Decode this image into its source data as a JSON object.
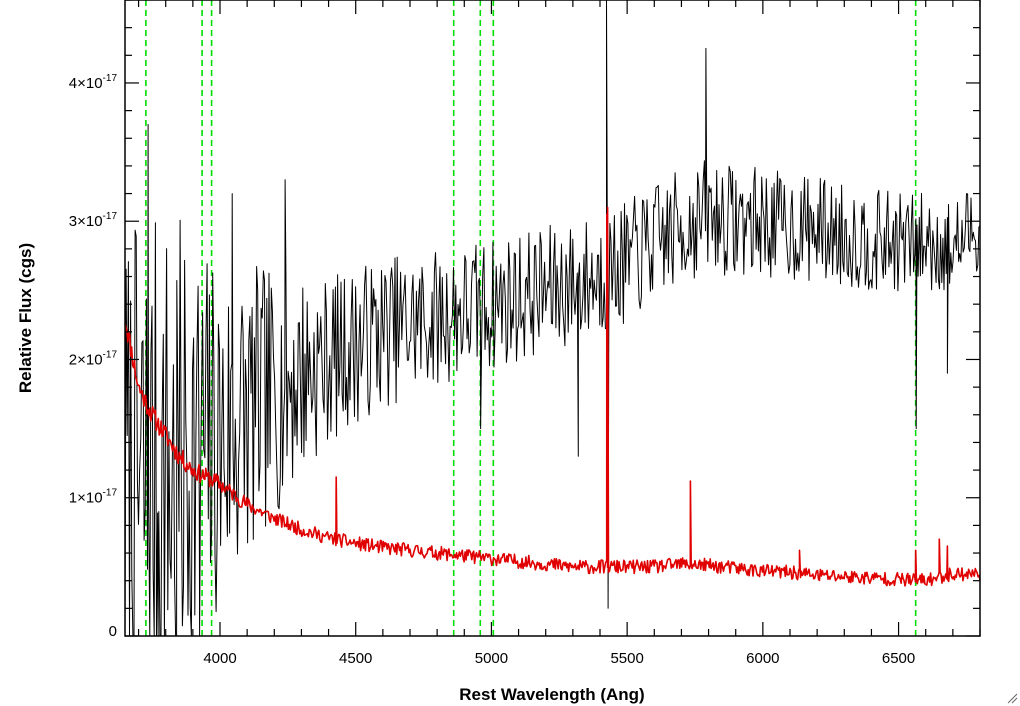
{
  "chart_data": {
    "type": "line",
    "title": "",
    "xlabel": "Rest Wavelength (Ang)",
    "ylabel": "Relative Flux (cgs)",
    "xlim": [
      3650,
      6800
    ],
    "ylim": [
      0,
      4.6e-17
    ],
    "x_ticks": [
      {
        "value": 4000,
        "label": "4000"
      },
      {
        "value": 4500,
        "label": "4500"
      },
      {
        "value": 5000,
        "label": "5000"
      },
      {
        "value": 5500,
        "label": "5500"
      },
      {
        "value": 6000,
        "label": "6000"
      },
      {
        "value": 6500,
        "label": "6500"
      }
    ],
    "x_minor_step": 100,
    "y_ticks": [
      {
        "value": 0,
        "mantissa": "0",
        "exponent": ""
      },
      {
        "value": 1e-17,
        "mantissa": "1×10",
        "exponent": "-17"
      },
      {
        "value": 2e-17,
        "mantissa": "2×10",
        "exponent": "-17"
      },
      {
        "value": 3e-17,
        "mantissa": "3×10",
        "exponent": "-17"
      },
      {
        "value": 4e-17,
        "mantissa": "4×10",
        "exponent": "-17"
      }
    ],
    "y_minor_step": 2e-18,
    "grid": false,
    "legend": "none",
    "vertical_lines": {
      "color": "#00dd00",
      "style": "dashed",
      "x": [
        3727,
        3934,
        3969,
        4861,
        4959,
        5007,
        6563
      ]
    },
    "series": [
      {
        "color": "#000000",
        "noise_seed": 7,
        "envelope_x": [
          3650,
          3700,
          3800,
          3900,
          4000,
          4100,
          4200,
          4300,
          4400,
          4500,
          4600,
          4700,
          4800,
          4900,
          5000,
          5100,
          5200,
          5300,
          5400,
          5500,
          5600,
          5700,
          5800,
          5900,
          6000,
          6100,
          6200,
          6300,
          6400,
          6500,
          6600,
          6700,
          6800
        ],
        "envelope_y": [
          1e-17,
          1e-17,
          1.1e-17,
          1.3e-17,
          1.4e-17,
          1.6e-17,
          1.75e-17,
          1.9e-17,
          2e-17,
          2.1e-17,
          2.2e-17,
          2.25e-17,
          2.3e-17,
          2.35e-17,
          2.4e-17,
          2.45e-17,
          2.5e-17,
          2.55e-17,
          2.6e-17,
          2.7e-17,
          2.85e-17,
          2.95e-17,
          3.05e-17,
          3e-17,
          3e-17,
          2.95e-17,
          2.95e-17,
          2.9e-17,
          2.85e-17,
          2.85e-17,
          2.85e-17,
          2.8e-17,
          3e-17
        ],
        "noise_x": [
          3650,
          3800,
          4000,
          4200,
          4400,
          4800,
          5400,
          6000,
          6800
        ],
        "noise_y": [
          2e-17,
          2e-17,
          1.3e-17,
          9e-18,
          6e-18,
          5e-18,
          4.5e-18,
          4e-18,
          3.5e-18
        ],
        "spikes": [
          {
            "x": 3735,
            "y": 3.7e-17
          },
          {
            "x": 3772,
            "y": 0
          },
          {
            "x": 3840,
            "y": 0
          },
          {
            "x": 3925,
            "y": 0
          },
          {
            "x": 4045,
            "y": 3.2e-17
          },
          {
            "x": 4240,
            "y": 3.3e-17
          },
          {
            "x": 4960,
            "y": 1.5e-17
          },
          {
            "x": 5320,
            "y": 1.3e-17
          },
          {
            "x": 5424,
            "y": 4.6e-17
          },
          {
            "x": 5430,
            "y": 2e-18
          },
          {
            "x": 5790,
            "y": 4.25e-17
          },
          {
            "x": 6565,
            "y": 1.5e-17
          },
          {
            "x": 6680,
            "y": 1.9e-17
          }
        ]
      },
      {
        "color": "#e00000",
        "noise_seed": 11,
        "envelope_x": [
          3650,
          3700,
          3750,
          3800,
          3850,
          3900,
          4000,
          4100,
          4200,
          4300,
          4400,
          4500,
          4600,
          4700,
          4800,
          4900,
          5000,
          5100,
          5200,
          5300,
          5400,
          5500,
          5600,
          5700,
          5800,
          5900,
          6000,
          6100,
          6200,
          6300,
          6400,
          6500,
          6600,
          6700,
          6800
        ],
        "envelope_y": [
          2.3e-17,
          1.8e-17,
          1.6e-17,
          1.45e-17,
          1.3e-17,
          1.2e-17,
          1.1e-17,
          9.5e-18,
          8.5e-18,
          7.7e-18,
          7.1e-18,
          6.7e-18,
          6.4e-18,
          6.2e-18,
          6e-18,
          5.8e-18,
          5.6e-18,
          5.4e-18,
          5.2e-18,
          5e-18,
          5e-18,
          5e-18,
          5e-18,
          5.2e-18,
          5.1e-18,
          4.9e-18,
          4.7e-18,
          4.6e-18,
          4.4e-18,
          4.3e-18,
          4.2e-18,
          4.1e-18,
          4e-18,
          4.5e-18,
          4.5e-18
        ],
        "noise_x": [
          3650,
          4200,
          6800
        ],
        "noise_y": [
          8e-19,
          5e-19,
          5e-19
        ],
        "spikes": [
          {
            "x": 4428,
            "y": 1.15e-17
          },
          {
            "x": 5425,
            "y": 3.05e-17
          },
          {
            "x": 5428,
            "y": 3.1e-17
          },
          {
            "x": 5733,
            "y": 1.12e-17
          },
          {
            "x": 6135,
            "y": 6.2e-18
          },
          {
            "x": 6563,
            "y": 6.2e-18
          },
          {
            "x": 6650,
            "y": 7e-18
          },
          {
            "x": 6680,
            "y": 6.5e-18
          }
        ]
      }
    ]
  }
}
